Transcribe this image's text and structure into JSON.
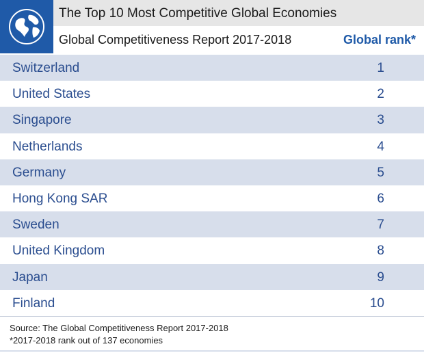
{
  "header": {
    "title": "The Top 10 Most Competitive Global Economies",
    "subtitle": "Global Competitiveness Report 2017-2018",
    "rank_column": "Global rank*",
    "logo_icon": "globe-icon"
  },
  "rows": [
    {
      "country": "Switzerland",
      "rank": "1"
    },
    {
      "country": "United States",
      "rank": "2"
    },
    {
      "country": "Singapore",
      "rank": "3"
    },
    {
      "country": "Netherlands",
      "rank": "4"
    },
    {
      "country": "Germany",
      "rank": "5"
    },
    {
      "country": "Hong Kong SAR",
      "rank": "6"
    },
    {
      "country": "Sweden",
      "rank": "7"
    },
    {
      "country": "United Kingdom",
      "rank": "8"
    },
    {
      "country": "Japan",
      "rank": "9"
    },
    {
      "country": "Finland",
      "rank": "10"
    }
  ],
  "footer": {
    "source": "Source: The Global Competitiveness Report 2017-2018",
    "note": "*2017-2018 rank out of 137 economies"
  },
  "colors": {
    "brand_blue": "#1f5aa8",
    "row_shade": "#d7deeb",
    "text_blue": "#2a4d8f"
  }
}
